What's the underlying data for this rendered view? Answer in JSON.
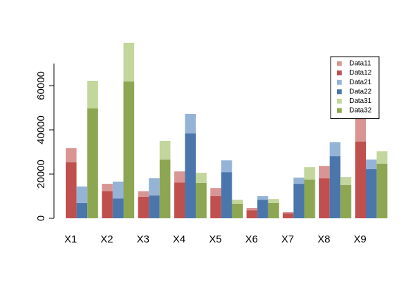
{
  "chart_data": {
    "type": "bar",
    "categories": [
      "X1",
      "X2",
      "X3",
      "X4",
      "X5",
      "X6",
      "X7",
      "X8",
      "X9"
    ],
    "series": [
      {
        "name": "Data11",
        "color": "#d99594",
        "values": [
          6500,
          3400,
          2500,
          5000,
          3700,
          1000,
          600,
          5600,
          10300
        ]
      },
      {
        "name": "Data12",
        "color": "#c0504d",
        "values": [
          25300,
          12200,
          9700,
          16200,
          10000,
          3700,
          2200,
          18100,
          34700
        ]
      },
      {
        "name": "Data21",
        "color": "#95b3d7",
        "values": [
          7500,
          7600,
          7800,
          8800,
          5300,
          1600,
          2800,
          6300,
          4400
        ]
      },
      {
        "name": "Data22",
        "color": "#4a76ac",
        "values": [
          6900,
          9000,
          10300,
          38400,
          20900,
          8400,
          15600,
          28100,
          22200
        ]
      },
      {
        "name": "Data31",
        "color": "#c3d69b",
        "values": [
          12500,
          17500,
          8400,
          4600,
          1800,
          1800,
          5600,
          3700,
          5600
        ]
      },
      {
        "name": "Data32",
        "color": "#8da652",
        "values": [
          49700,
          61900,
          26600,
          16000,
          6600,
          6900,
          17500,
          15000,
          24700
        ]
      }
    ],
    "ylim": [
      0,
      70000
    ],
    "yticks": [
      0,
      20000,
      40000,
      60000
    ],
    "legend": "top-right"
  }
}
